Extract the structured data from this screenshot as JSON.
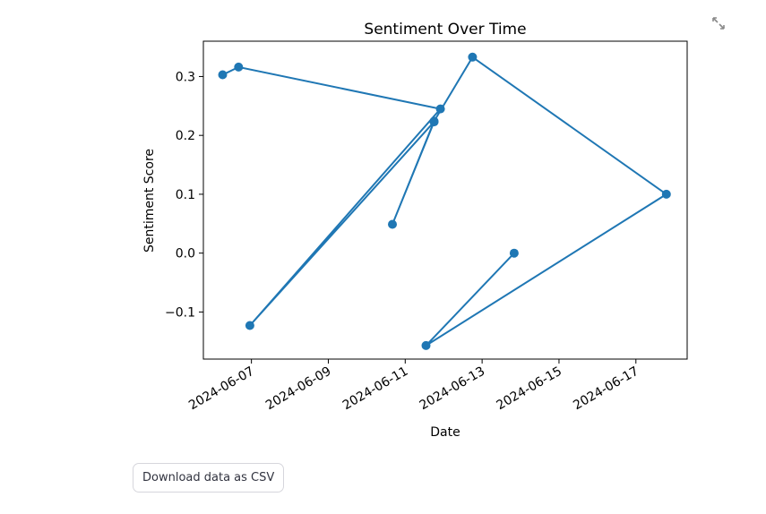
{
  "toolbar": {
    "expand_icon": "fullscreen-expand-icon"
  },
  "download_button": {
    "label": "Download data as CSV"
  },
  "colors": {
    "series": "#1f77b4",
    "axes": "#000000"
  },
  "chart_data": {
    "type": "line",
    "title": "Sentiment Over Time",
    "xlabel": "Date",
    "ylabel": "Sentiment Score",
    "marker": "circle",
    "grid": false,
    "legend": "none",
    "xlim": [
      "2024-06-05T18:00",
      "2024-06-18T08:00"
    ],
    "ylim": [
      -0.18,
      0.36
    ],
    "x_ticks": [
      "2024-06-07",
      "2024-06-09",
      "2024-06-11",
      "2024-06-13",
      "2024-06-15",
      "2024-06-17"
    ],
    "y_ticks": [
      "−0.1",
      "0.0",
      "0.1",
      "0.2",
      "0.3"
    ],
    "series": [
      {
        "x": [
          "2024-06-06T06:00",
          "2024-06-06T16:00",
          "2024-06-11T22:00",
          "2024-06-06T23:00",
          "2024-06-11T18:00",
          "2024-06-10T16:00",
          "2024-06-11T18:00",
          "2024-06-12T18:00",
          "2024-06-17T19:00",
          "2024-06-11T13:00",
          "2024-06-13T20:00"
        ],
        "y": [
          0.303,
          0.316,
          0.245,
          -0.123,
          0.223,
          0.049,
          0.224,
          0.333,
          0.1,
          -0.157,
          0.0
        ]
      }
    ]
  }
}
